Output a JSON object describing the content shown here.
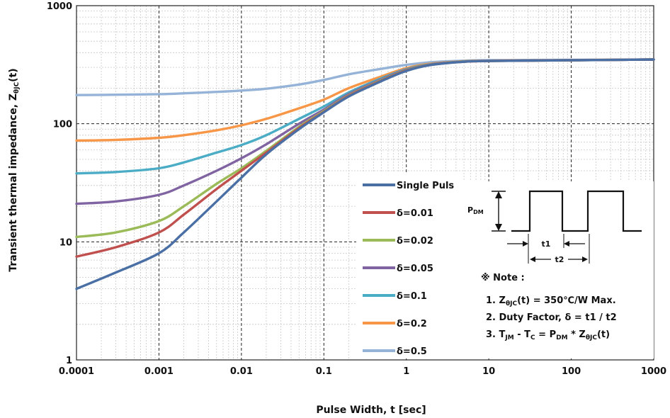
{
  "chart_data": {
    "type": "line",
    "title": "",
    "xlabel": "Pulse Width, t [sec]",
    "ylabel_main": "Transient thermal impedance, Z",
    "ylabel_sub": "θJC",
    "ylabel_tail": "(t)",
    "x_scale": "log",
    "y_scale": "log",
    "xlim": [
      0.0001,
      1000
    ],
    "ylim": [
      1,
      1000
    ],
    "x_ticks": [
      "0.0001",
      "0.001",
      "0.01",
      "0.1",
      "1",
      "10",
      "100",
      "1000"
    ],
    "y_ticks": [
      "1",
      "10",
      "100",
      "1000"
    ],
    "grid": true,
    "legend_position": "center-right",
    "series": [
      {
        "name": "Single Puls",
        "color": "#4a6fa5",
        "x": [
          0.0001,
          0.0003,
          0.001,
          0.002,
          0.005,
          0.01,
          0.02,
          0.05,
          0.1,
          0.2,
          0.5,
          1,
          2,
          5,
          10,
          100,
          1000
        ],
        "y": [
          4,
          5.5,
          8,
          12,
          22,
          35,
          55,
          90,
          125,
          170,
          230,
          280,
          315,
          335,
          340,
          345,
          350
        ]
      },
      {
        "name": "δ=0.01",
        "color": "#c0504d",
        "x": [
          0.0001,
          0.0003,
          0.001,
          0.002,
          0.005,
          0.01,
          0.02,
          0.05,
          0.1,
          0.2,
          0.5,
          1,
          2,
          5,
          10,
          100,
          1000
        ],
        "y": [
          7.5,
          9,
          12,
          17,
          28,
          40,
          57,
          92,
          126,
          172,
          232,
          282,
          316,
          335,
          340,
          345,
          350
        ]
      },
      {
        "name": "δ=0.02",
        "color": "#9bbb59",
        "x": [
          0.0001,
          0.0003,
          0.001,
          0.002,
          0.005,
          0.01,
          0.02,
          0.05,
          0.1,
          0.2,
          0.5,
          1,
          2,
          5,
          10,
          100,
          1000
        ],
        "y": [
          11,
          12,
          15,
          20,
          31,
          42,
          59,
          94,
          128,
          174,
          234,
          284,
          317,
          336,
          340,
          345,
          350
        ]
      },
      {
        "name": "δ=0.05",
        "color": "#8064a2",
        "x": [
          0.0001,
          0.0003,
          0.001,
          0.002,
          0.005,
          0.01,
          0.02,
          0.05,
          0.1,
          0.2,
          0.5,
          1,
          2,
          5,
          10,
          100,
          1000
        ],
        "y": [
          21,
          22,
          25,
          30,
          40,
          51,
          67,
          100,
          132,
          178,
          238,
          287,
          318,
          336,
          341,
          345,
          350
        ]
      },
      {
        "name": "δ=0.1",
        "color": "#4bacc6",
        "x": [
          0.0001,
          0.0003,
          0.001,
          0.002,
          0.005,
          0.01,
          0.02,
          0.05,
          0.1,
          0.2,
          0.5,
          1,
          2,
          5,
          10,
          100,
          1000
        ],
        "y": [
          38,
          39,
          42,
          47,
          57,
          66,
          80,
          110,
          140,
          184,
          243,
          290,
          320,
          337,
          341,
          345,
          350
        ]
      },
      {
        "name": "δ=0.2",
        "color": "#f79646",
        "x": [
          0.0001,
          0.0003,
          0.001,
          0.002,
          0.005,
          0.01,
          0.02,
          0.05,
          0.1,
          0.2,
          0.5,
          1,
          2,
          5,
          10,
          100,
          1000
        ],
        "y": [
          72,
          73,
          76,
          80,
          88,
          97,
          110,
          135,
          160,
          200,
          252,
          296,
          323,
          338,
          342,
          346,
          350
        ]
      },
      {
        "name": "δ=0.5",
        "color": "#95b3d7",
        "x": [
          0.0001,
          0.0003,
          0.001,
          0.002,
          0.005,
          0.01,
          0.02,
          0.05,
          0.1,
          0.2,
          0.5,
          1,
          2,
          5,
          10,
          100,
          1000
        ],
        "y": [
          175,
          176,
          178,
          181,
          186,
          191,
          198,
          215,
          235,
          262,
          292,
          315,
          332,
          342,
          345,
          348,
          350
        ]
      }
    ]
  },
  "diagram": {
    "pdm_main": "P",
    "pdm_sub": "DM",
    "t1": "t1",
    "t2": "t2"
  },
  "note": {
    "heading": "※ Note :",
    "line1_a": "1. Z",
    "line1_sub": "θJC",
    "line1_b": "(t) = 350℃/W Max.",
    "line2": "2. Duty Factor, δ = t1 / t2",
    "line3_a": "3. T",
    "line3_sub1": "JM",
    "line3_b": " - T",
    "line3_sub2": "C",
    "line3_c": " = P",
    "line3_sub3": "DM",
    "line3_d": " * Z",
    "line3_sub4": "θJC",
    "line3_e": "(t)"
  }
}
